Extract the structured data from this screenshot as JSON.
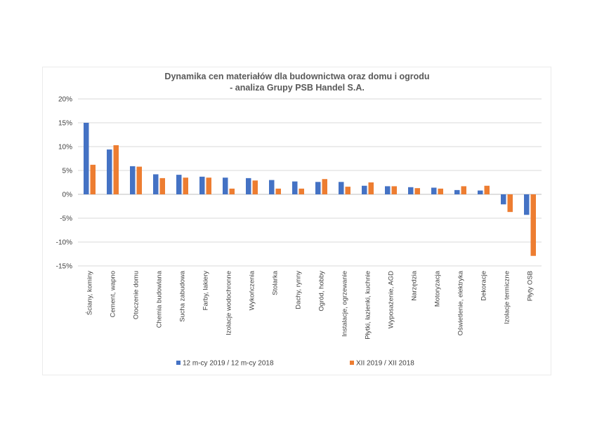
{
  "chart_data": {
    "type": "bar",
    "title": [
      "Dynamika cen materiałów dla budownictwa oraz domu i ogrodu",
      "- analiza Grupy PSB Handel S.A."
    ],
    "categories": [
      "Ściany, kominy",
      "Cement, wapno",
      "Otoczenie domu",
      "Chemia budowlana",
      "Sucha zabudowa",
      "Farby, lakiery",
      "Izolacje wodochronne",
      "Wykończenia",
      "Stolarka",
      "Dachy, rynny",
      "Ogród, hobby",
      "Instalacje, ogrzewanie",
      "Płytki, łazienki, kuchnie",
      "Wyposażenie, AGD",
      "Narzędzia",
      "Motoryzacja",
      "Oświetlenie, elektryka",
      "Dekoracje",
      "Izolacje termiczne",
      "Płyty OSB"
    ],
    "series": [
      {
        "name": "12 m-cy 2019 / 12 m-cy 2018",
        "color": "#4472C4",
        "values": [
          15.0,
          9.4,
          5.9,
          4.2,
          4.1,
          3.7,
          3.5,
          3.4,
          3.0,
          2.7,
          2.6,
          2.6,
          1.8,
          1.7,
          1.5,
          1.4,
          0.9,
          0.8,
          -2.1,
          -4.3
        ]
      },
      {
        "name": "XII 2019 / XII 2018",
        "color": "#ED7D31",
        "values": [
          6.2,
          10.3,
          5.8,
          3.4,
          3.5,
          3.5,
          1.2,
          2.9,
          1.2,
          1.2,
          3.2,
          1.6,
          2.5,
          1.7,
          1.3,
          1.2,
          1.7,
          1.8,
          -3.7,
          -12.9
        ]
      }
    ],
    "ylim": [
      -15,
      20
    ],
    "yticks": [
      20,
      15,
      10,
      5,
      0,
      -5,
      -10,
      -15
    ],
    "ytick_labels": [
      "20%",
      "15%",
      "10%",
      "5%",
      "0%",
      "-5%",
      "-10%",
      "-15%"
    ],
    "grid": true,
    "legend_position": "bottom"
  }
}
